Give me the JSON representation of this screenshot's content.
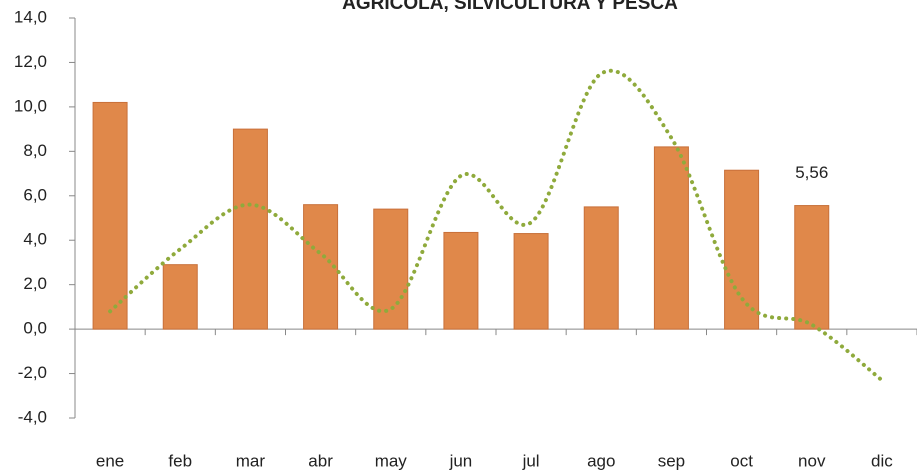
{
  "chart_data": {
    "type": "bar",
    "title": "AGRÍCOLA, SILVICULTURA Y PESCA",
    "categories": [
      "ene",
      "feb",
      "mar",
      "abr",
      "may",
      "jun",
      "jul",
      "ago",
      "sep",
      "oct",
      "nov",
      "dic"
    ],
    "series": [
      {
        "type": "bar",
        "color": "#e0884a",
        "values": [
          10.2,
          2.9,
          9.0,
          5.6,
          5.4,
          4.35,
          4.3,
          5.5,
          8.2,
          7.15,
          5.56,
          null
        ],
        "value_labels": [
          null,
          null,
          null,
          null,
          null,
          null,
          null,
          null,
          null,
          null,
          "5,56",
          null
        ]
      },
      {
        "type": "line",
        "color": "#8faa3c",
        "values": [
          0.8,
          3.6,
          5.6,
          3.4,
          0.9,
          6.9,
          4.8,
          11.5,
          8.6,
          1.4,
          0.2,
          -2.3
        ]
      }
    ],
    "ylim": [
      -4,
      14
    ],
    "yticks": [
      {
        "value": -4,
        "label": "-4,0"
      },
      {
        "value": -2,
        "label": "-2,0"
      },
      {
        "value": 0,
        "label": "0,0"
      },
      {
        "value": 2,
        "label": "2,0"
      },
      {
        "value": 4,
        "label": "4,0"
      },
      {
        "value": 6,
        "label": "6,0"
      },
      {
        "value": 8,
        "label": "8,0"
      },
      {
        "value": 10,
        "label": "10,0"
      },
      {
        "value": 12,
        "label": "12,0"
      },
      {
        "value": 14,
        "label": "14,0"
      }
    ]
  }
}
